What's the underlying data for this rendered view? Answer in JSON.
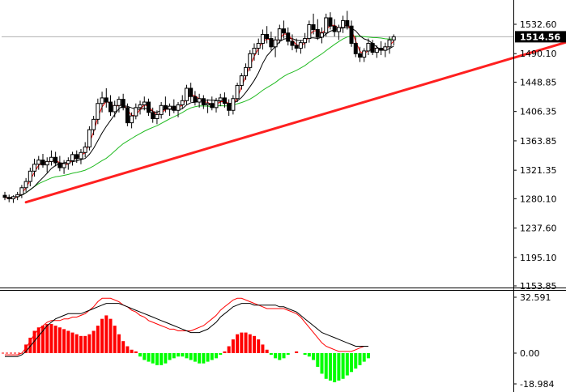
{
  "chart_data": [
    {
      "type": "candlestick",
      "title": "",
      "y_axis_side": "right",
      "y_ticks": [
        "1532.60",
        "1490.10",
        "1448.85",
        "1406.35",
        "1363.85",
        "1321.35",
        "1280.10",
        "1237.60",
        "1195.10",
        "1153.85"
      ],
      "current_price_label": "1514.56",
      "current_price": 1514.56,
      "ylim": [
        1153.85,
        1555
      ],
      "colors": {
        "fast_ma": "#ff0000",
        "slow_ma": "#000000",
        "long_ma": "#22bb22",
        "trendline": "#ff2020",
        "candle_up": "#ffffff",
        "candle_down": "#000000",
        "price_line": "#b0b0b0"
      },
      "trendline": {
        "start_index": 5,
        "start_value": 1275,
        "end_index": 165,
        "end_value": 1565
      },
      "candles": [
        [
          1285,
          1290,
          1278,
          1282
        ],
        [
          1282,
          1286,
          1275,
          1280
        ],
        [
          1280,
          1285,
          1274,
          1283
        ],
        [
          1283,
          1290,
          1278,
          1286
        ],
        [
          1286,
          1300,
          1281,
          1296
        ],
        [
          1296,
          1310,
          1290,
          1305
        ],
        [
          1305,
          1325,
          1298,
          1320
        ],
        [
          1320,
          1338,
          1312,
          1330
        ],
        [
          1330,
          1342,
          1322,
          1336
        ],
        [
          1336,
          1345,
          1325,
          1329
        ],
        [
          1329,
          1340,
          1318,
          1334
        ],
        [
          1334,
          1350,
          1328,
          1340
        ],
        [
          1340,
          1348,
          1327,
          1332
        ],
        [
          1332,
          1342,
          1320,
          1325
        ],
        [
          1325,
          1336,
          1316,
          1331
        ],
        [
          1331,
          1340,
          1322,
          1335
        ],
        [
          1335,
          1348,
          1328,
          1344
        ],
        [
          1344,
          1350,
          1332,
          1338
        ],
        [
          1338,
          1352,
          1330,
          1347
        ],
        [
          1347,
          1362,
          1340,
          1355
        ],
        [
          1355,
          1385,
          1350,
          1380
        ],
        [
          1380,
          1400,
          1372,
          1395
        ],
        [
          1395,
          1425,
          1388,
          1418
        ],
        [
          1418,
          1435,
          1405,
          1426
        ],
        [
          1426,
          1440,
          1412,
          1420
        ],
        [
          1420,
          1430,
          1400,
          1406
        ],
        [
          1406,
          1422,
          1398,
          1415
        ],
        [
          1415,
          1428,
          1405,
          1424
        ],
        [
          1424,
          1432,
          1408,
          1412
        ],
        [
          1412,
          1418,
          1385,
          1390
        ],
        [
          1390,
          1405,
          1382,
          1400
        ],
        [
          1400,
          1418,
          1395,
          1412
        ],
        [
          1412,
          1422,
          1402,
          1416
        ],
        [
          1416,
          1428,
          1408,
          1420
        ],
        [
          1420,
          1425,
          1400,
          1405
        ],
        [
          1405,
          1412,
          1390,
          1396
        ],
        [
          1396,
          1408,
          1388,
          1402
        ],
        [
          1402,
          1420,
          1396,
          1415
        ],
        [
          1415,
          1428,
          1405,
          1410
        ],
        [
          1410,
          1418,
          1400,
          1414
        ],
        [
          1414,
          1424,
          1404,
          1408
        ],
        [
          1408,
          1420,
          1398,
          1416
        ],
        [
          1416,
          1430,
          1410,
          1422
        ],
        [
          1422,
          1445,
          1416,
          1440
        ],
        [
          1440,
          1448,
          1420,
          1428
        ],
        [
          1428,
          1436,
          1415,
          1420
        ],
        [
          1420,
          1432,
          1412,
          1425
        ],
        [
          1425,
          1430,
          1410,
          1416
        ],
        [
          1416,
          1424,
          1404,
          1418
        ],
        [
          1418,
          1428,
          1408,
          1412
        ],
        [
          1412,
          1426,
          1405,
          1422
        ],
        [
          1422,
          1432,
          1414,
          1426
        ],
        [
          1426,
          1434,
          1412,
          1418
        ],
        [
          1418,
          1424,
          1400,
          1408
        ],
        [
          1408,
          1430,
          1402,
          1425
        ],
        [
          1425,
          1448,
          1420,
          1444
        ],
        [
          1444,
          1462,
          1438,
          1458
        ],
        [
          1458,
          1476,
          1452,
          1470
        ],
        [
          1470,
          1495,
          1465,
          1490
        ],
        [
          1490,
          1505,
          1480,
          1498
        ],
        [
          1498,
          1512,
          1488,
          1505
        ],
        [
          1505,
          1525,
          1496,
          1518
        ],
        [
          1518,
          1530,
          1505,
          1512
        ],
        [
          1512,
          1522,
          1495,
          1500
        ],
        [
          1500,
          1515,
          1485,
          1510
        ],
        [
          1510,
          1532,
          1505,
          1526
        ],
        [
          1526,
          1538,
          1512,
          1520
        ],
        [
          1520,
          1528,
          1502,
          1508
        ],
        [
          1508,
          1518,
          1495,
          1502
        ],
        [
          1502,
          1512,
          1492,
          1498
        ],
        [
          1498,
          1510,
          1490,
          1506
        ],
        [
          1506,
          1520,
          1498,
          1512
        ],
        [
          1512,
          1538,
          1506,
          1532
        ],
        [
          1532,
          1548,
          1518,
          1525
        ],
        [
          1525,
          1540,
          1510,
          1514
        ],
        [
          1514,
          1528,
          1505,
          1520
        ],
        [
          1520,
          1548,
          1515,
          1542
        ],
        [
          1542,
          1550,
          1525,
          1530
        ],
        [
          1530,
          1540,
          1515,
          1522
        ],
        [
          1522,
          1532,
          1510,
          1528
        ],
        [
          1528,
          1545,
          1520,
          1538
        ],
        [
          1538,
          1552,
          1525,
          1530
        ],
        [
          1530,
          1538,
          1500,
          1505
        ],
        [
          1505,
          1515,
          1485,
          1490
        ],
        [
          1490,
          1500,
          1478,
          1485
        ],
        [
          1485,
          1498,
          1478,
          1494
        ],
        [
          1494,
          1512,
          1488,
          1505
        ],
        [
          1505,
          1510,
          1488,
          1492
        ],
        [
          1492,
          1502,
          1484,
          1498
        ],
        [
          1498,
          1508,
          1488,
          1495
        ],
        [
          1495,
          1506,
          1485,
          1500
        ],
        [
          1500,
          1515,
          1490,
          1510
        ],
        [
          1510,
          1518,
          1502,
          1514.56
        ]
      ]
    },
    {
      "type": "histogram",
      "title": "",
      "y_axis_side": "right",
      "y_ticks": [
        "32.591",
        "0.00",
        "-18.984"
      ],
      "ylim": [
        -18.984,
        32.591
      ],
      "colors": {
        "positive": "#ff0000",
        "negative": "#00ff00",
        "macd_line": "#000000",
        "signal_line": "#ff0000",
        "zero_dash": "#ff0000"
      },
      "histogram": [
        0,
        0,
        0,
        0,
        0,
        5,
        9,
        13,
        15,
        16,
        17,
        17,
        16,
        15,
        14,
        13,
        12,
        11,
        10,
        10,
        11,
        13,
        16,
        20,
        22,
        20,
        16,
        11,
        7,
        4,
        2,
        1,
        -2,
        -4,
        -5,
        -6,
        -7,
        -7,
        -6,
        -4,
        -3,
        -2,
        -2,
        -3,
        -4,
        -5,
        -6,
        -6,
        -5,
        -4,
        -3,
        -1,
        1,
        4,
        8,
        11,
        12,
        12,
        11,
        10,
        8,
        5,
        2,
        -1,
        -3,
        -4,
        -3,
        -1,
        0,
        1,
        0,
        -1,
        -2,
        -4,
        -8,
        -12,
        -15,
        -16,
        -17,
        -16,
        -15,
        -13,
        -11,
        -9,
        -7,
        -5,
        -3
      ],
      "macd_line": [
        -2,
        -2,
        -2,
        -2,
        -1,
        1,
        4,
        7,
        10,
        13,
        16,
        18,
        20,
        21,
        22,
        23,
        23,
        23,
        23,
        24,
        25,
        26,
        27,
        28,
        29,
        29,
        29,
        29,
        28,
        27,
        26,
        25,
        24,
        23,
        22,
        21,
        20,
        19,
        18,
        17,
        16,
        15,
        14,
        13,
        12,
        12,
        12,
        13,
        14,
        16,
        18,
        21,
        23,
        25,
        27,
        28,
        29,
        29,
        29,
        28,
        28,
        28,
        28,
        28,
        28,
        27,
        27,
        26,
        25,
        24,
        22,
        20,
        18,
        16,
        14,
        12,
        11,
        10,
        9,
        8,
        7,
        6,
        5,
        4,
        4,
        4,
        4
      ],
      "signal_line": [
        -1,
        -1,
        -1,
        -1,
        0,
        3,
        7,
        11,
        14,
        16,
        18,
        19,
        19,
        19,
        20,
        20,
        21,
        21,
        22,
        23,
        25,
        27,
        30,
        32,
        32,
        32,
        31,
        30,
        28,
        27,
        25,
        24,
        22,
        21,
        19,
        18,
        17,
        16,
        15,
        14,
        14,
        13,
        13,
        13,
        13,
        14,
        15,
        16,
        18,
        20,
        22,
        25,
        27,
        29,
        31,
        32,
        32,
        31,
        30,
        29,
        28,
        27,
        26,
        26,
        26,
        26,
        26,
        25,
        24,
        23,
        21,
        18,
        15,
        12,
        9,
        6,
        4,
        3,
        2,
        1,
        1,
        1,
        1,
        2,
        3,
        4,
        4
      ]
    }
  ]
}
